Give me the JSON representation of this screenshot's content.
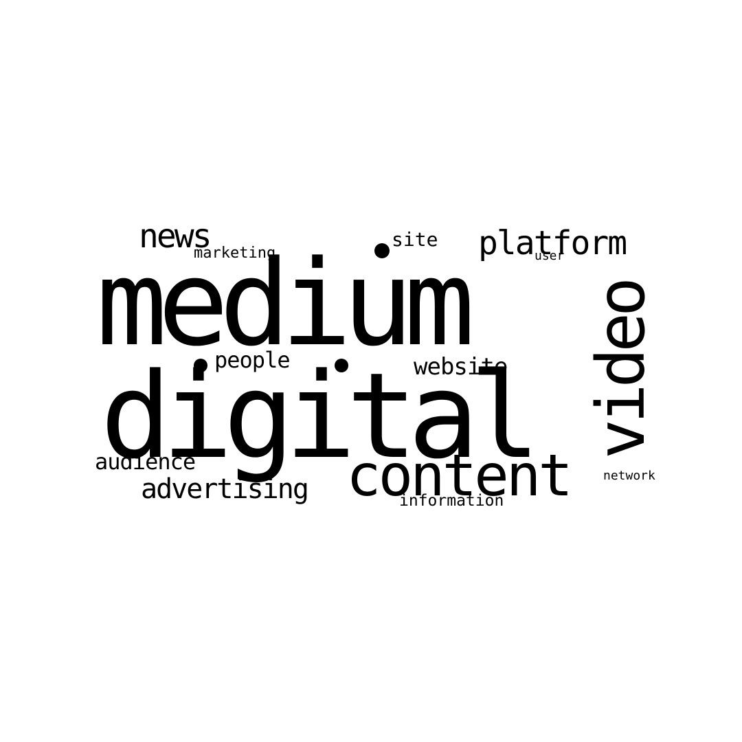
{
  "word_cloud": {
    "background": "#ffffff",
    "text_color": "#000000",
    "words": [
      {
        "text": "medium"
      },
      {
        "text": "digital"
      },
      {
        "text": "content"
      },
      {
        "text": "video"
      },
      {
        "text": "platform"
      },
      {
        "text": "news"
      },
      {
        "text": "site"
      },
      {
        "text": "marketing"
      },
      {
        "text": "user"
      },
      {
        "text": "people"
      },
      {
        "text": "website"
      },
      {
        "text": "audience"
      },
      {
        "text": "advertising"
      },
      {
        "text": "network"
      },
      {
        "text": "information"
      }
    ]
  }
}
